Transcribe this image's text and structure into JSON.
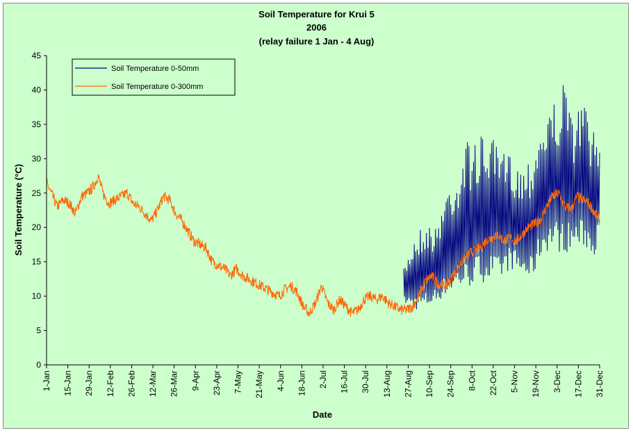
{
  "chart_data": {
    "type": "line",
    "title": "Soil Temperature for Krui 5",
    "subtitle": "2006",
    "note": "(relay failure 1 Jan - 4 Aug)",
    "xlabel": "Date",
    "ylabel": "Soil Temperature (°C)",
    "ylim": [
      0,
      45
    ],
    "y_ticks": [
      0,
      5,
      10,
      15,
      20,
      25,
      30,
      35,
      40,
      45
    ],
    "xlim_day_of_year": [
      1,
      365
    ],
    "x_ticks": [
      {
        "day": 1,
        "label": "1-Jan"
      },
      {
        "day": 15,
        "label": "15-Jan"
      },
      {
        "day": 29,
        "label": "29-Jan"
      },
      {
        "day": 43,
        "label": "12-Feb"
      },
      {
        "day": 57,
        "label": "26-Feb"
      },
      {
        "day": 71,
        "label": "12-Mar"
      },
      {
        "day": 85,
        "label": "26-Mar"
      },
      {
        "day": 99,
        "label": "9-Apr"
      },
      {
        "day": 113,
        "label": "23-Apr"
      },
      {
        "day": 127,
        "label": "7-May"
      },
      {
        "day": 141,
        "label": "21-May"
      },
      {
        "day": 155,
        "label": "4-Jun"
      },
      {
        "day": 169,
        "label": "18-Jun"
      },
      {
        "day": 183,
        "label": "2-Jul"
      },
      {
        "day": 197,
        "label": "16-Jul"
      },
      {
        "day": 211,
        "label": "30-Jul"
      },
      {
        "day": 225,
        "label": "13-Aug"
      },
      {
        "day": 239,
        "label": "27-Aug"
      },
      {
        "day": 253,
        "label": "10-Sep"
      },
      {
        "day": 267,
        "label": "24-Sep"
      },
      {
        "day": 281,
        "label": "8-Oct"
      },
      {
        "day": 295,
        "label": "22-Oct"
      },
      {
        "day": 309,
        "label": "5-Nov"
      },
      {
        "day": 323,
        "label": "19-Nov"
      },
      {
        "day": 337,
        "label": "3-Dec"
      },
      {
        "day": 351,
        "label": "17-Dec"
      },
      {
        "day": 365,
        "label": "31-Dec"
      }
    ],
    "grid": false,
    "legend_position": "top-left",
    "series": [
      {
        "name": "Soil Temperature 0-50mm",
        "color": "#000080",
        "x_day_of_year": [
          236,
          243,
          250,
          257,
          264,
          271,
          278,
          285,
          292,
          299,
          306,
          313,
          320,
          327,
          334,
          341,
          348,
          355,
          362,
          365
        ],
        "daily_min": [
          9,
          8,
          8,
          9,
          10,
          11,
          11,
          12,
          12,
          12,
          14,
          13,
          12,
          16,
          17,
          16,
          17,
          17,
          16,
          19
        ],
        "daily_max": [
          14,
          19,
          21,
          20,
          26,
          28,
          33,
          33,
          34,
          31,
          31,
          29,
          31,
          36,
          38,
          41,
          36,
          39,
          33,
          33
        ]
      },
      {
        "name": "Soil Temperature  0-300mm",
        "color": "#ff6600",
        "x_day_of_year": [
          1,
          4,
          8,
          12,
          16,
          20,
          24,
          28,
          32,
          35,
          38,
          42,
          46,
          50,
          54,
          58,
          62,
          66,
          70,
          74,
          78,
          82,
          86,
          90,
          94,
          98,
          102,
          106,
          110,
          114,
          118,
          122,
          126,
          130,
          134,
          138,
          142,
          146,
          150,
          154,
          158,
          162,
          166,
          170,
          174,
          178,
          182,
          186,
          190,
          194,
          198,
          202,
          206,
          210,
          214,
          218,
          222,
          226,
          230,
          234,
          238,
          242,
          246,
          250,
          254,
          258,
          262,
          266,
          270,
          274,
          278,
          282,
          286,
          290,
          294,
          298,
          302,
          306,
          310,
          314,
          318,
          322,
          326,
          330,
          334,
          338,
          342,
          346,
          350,
          354,
          358,
          362,
          365
        ],
        "values": [
          26.5,
          25.0,
          23.0,
          24.0,
          23.5,
          22.0,
          24.5,
          25.0,
          26.0,
          27.5,
          25.0,
          23.5,
          24.0,
          24.5,
          25.0,
          23.5,
          23.0,
          22.0,
          21.0,
          22.5,
          24.5,
          24.0,
          22.0,
          21.0,
          19.5,
          18.0,
          17.5,
          17.0,
          15.0,
          14.5,
          14.0,
          13.0,
          14.0,
          13.0,
          12.5,
          12.0,
          11.5,
          11.0,
          10.5,
          10.0,
          11.0,
          11.5,
          10.5,
          8.5,
          7.5,
          9.0,
          11.5,
          9.0,
          8.0,
          9.5,
          8.5,
          7.5,
          8.0,
          9.5,
          10.0,
          9.5,
          10.0,
          9.0,
          8.5,
          8.0,
          8.0,
          8.5,
          10.0,
          12.0,
          13.0,
          12.0,
          11.5,
          12.0,
          13.5,
          15.0,
          16.0,
          16.5,
          17.0,
          18.0,
          18.5,
          19.0,
          18.0,
          18.5,
          18.0,
          19.0,
          20.0,
          20.5,
          21.0,
          23.0,
          24.5,
          25.0,
          23.0,
          22.5,
          24.5,
          24.0,
          23.5,
          22.0,
          21.0
        ]
      }
    ]
  }
}
